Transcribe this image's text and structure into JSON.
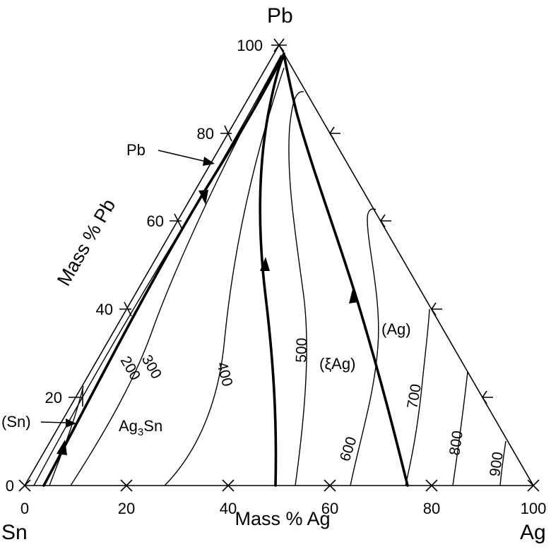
{
  "vertices": {
    "top": "Pb",
    "left": "Sn",
    "right": "Ag"
  },
  "axes": {
    "bottom_title": "Mass % Ag",
    "left_title": "Mass % Pb",
    "bottom_ticks": [
      "0",
      "20",
      "40",
      "60",
      "80",
      "100"
    ],
    "left_ticks": [
      "0",
      "20",
      "40",
      "60",
      "80",
      "100"
    ]
  },
  "phase_labels": {
    "pb": "Pb",
    "sn": "(Sn)",
    "ag3sn_base": "Ag",
    "ag3sn_sub": "3",
    "ag3sn_tail": "Sn",
    "xi_ag": "(ξAg)",
    "ag": "(Ag)"
  },
  "isotherm_labels": [
    "200",
    "300",
    "400",
    "500",
    "600",
    "700",
    "800",
    "900"
  ]
}
